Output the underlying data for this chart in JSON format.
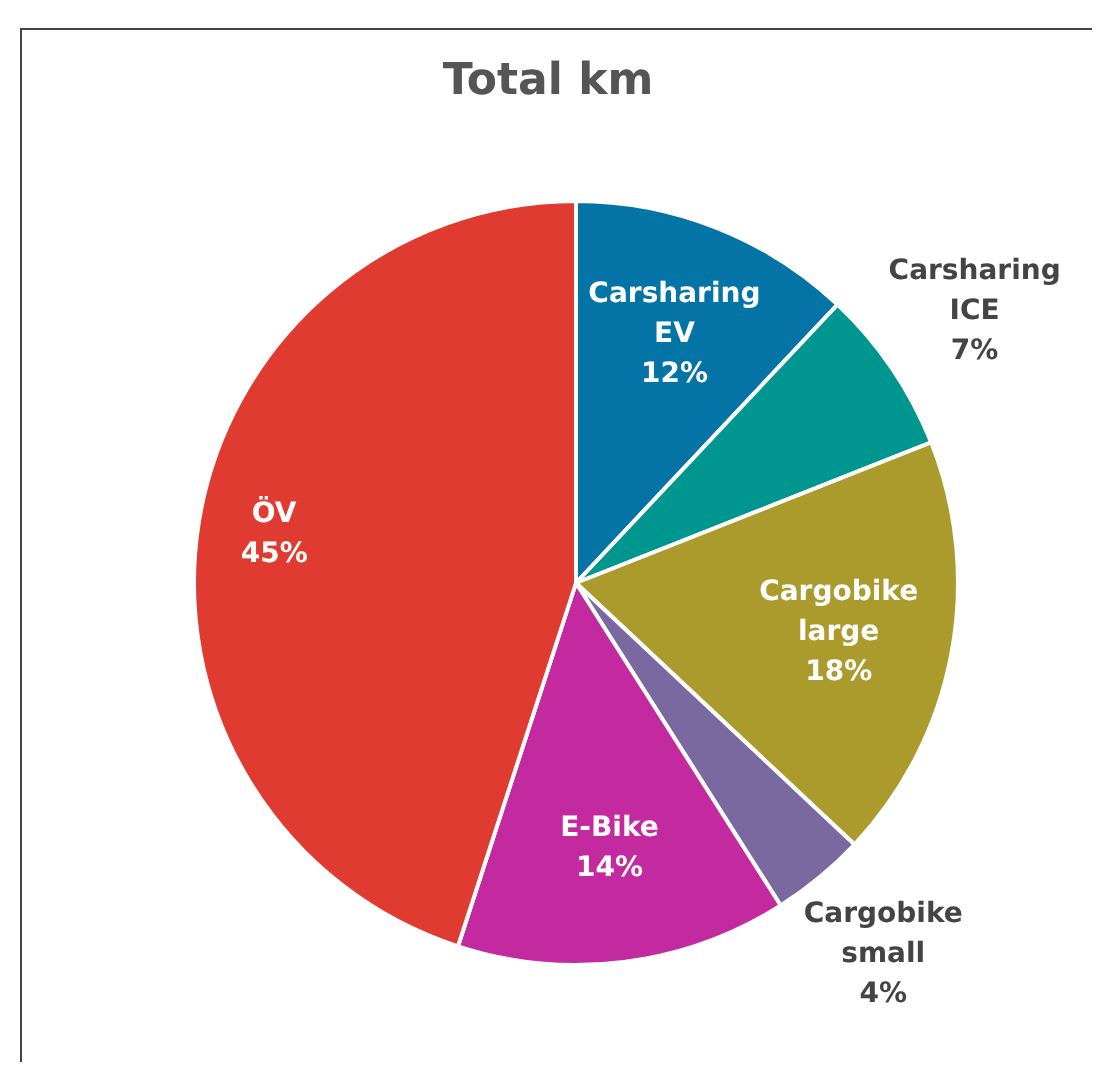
{
  "chart_data": {
    "type": "pie",
    "title": "Total km",
    "categories": [
      "Carsharing EV",
      "Carsharing ICE",
      "Cargobike large",
      "Cargobike small",
      "E-Bike",
      "ÖV"
    ],
    "values": [
      12,
      7,
      18,
      4,
      14,
      45
    ],
    "colors": [
      "#0474a6",
      "#009690",
      "#ab9b2d",
      "#7a68a0",
      "#c42a9f",
      "#e03b30"
    ],
    "value_labels": [
      "12%",
      "7%",
      "18%",
      "4%",
      "14%",
      "45%"
    ],
    "legend": false
  }
}
